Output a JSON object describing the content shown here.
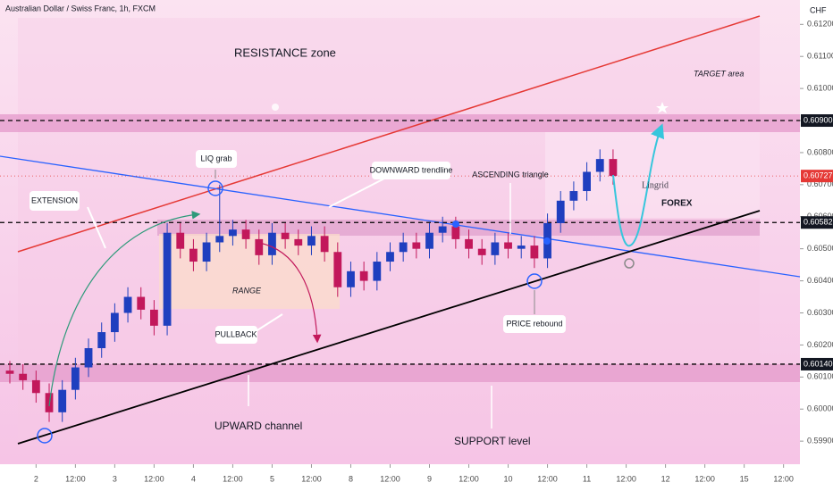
{
  "chart_data": {
    "type": "candlestick",
    "title": "Australian Dollar / Swiss Franc, 1h, FXCM",
    "currency": "CHF",
    "x": [
      -8,
      -4,
      0,
      4,
      8,
      12,
      16,
      20,
      24,
      28,
      32,
      36,
      40,
      44,
      48,
      52,
      56,
      60,
      64,
      68,
      72,
      76,
      80,
      84,
      88,
      92,
      96,
      100,
      104,
      108,
      112,
      116,
      120,
      124,
      128,
      132,
      136,
      140,
      144,
      148,
      152,
      156,
      160,
      164,
      168,
      172,
      176
    ],
    "open": [
      0.6012,
      0.6011,
      0.6009,
      0.6005,
      0.5999,
      0.6006,
      0.6013,
      0.6019,
      0.6024,
      0.603,
      0.6035,
      0.6031,
      0.6026,
      0.6055,
      0.605,
      0.6046,
      0.6052,
      0.6054,
      0.6056,
      0.6053,
      0.6048,
      0.6055,
      0.6053,
      0.6051,
      0.6054,
      0.6049,
      0.6038,
      0.6043,
      0.604,
      0.6046,
      0.6049,
      0.6052,
      0.605,
      0.6055,
      0.6057,
      0.6053,
      0.605,
      0.6048,
      0.6052,
      0.605,
      0.6051,
      0.6047,
      0.6058,
      0.6065,
      0.6068,
      0.6074,
      0.6078
    ],
    "high": [
      0.6015,
      0.6014,
      0.6012,
      0.6008,
      0.6009,
      0.6016,
      0.6022,
      0.6027,
      0.6033,
      0.6038,
      0.6038,
      0.6034,
      0.6058,
      0.6058,
      0.6053,
      0.6055,
      0.607,
      0.6059,
      0.6059,
      0.6056,
      0.6058,
      0.6058,
      0.6056,
      0.6057,
      0.6057,
      0.6052,
      0.6046,
      0.6046,
      0.6049,
      0.6052,
      0.6055,
      0.6055,
      0.6058,
      0.606,
      0.606,
      0.6056,
      0.6053,
      0.6055,
      0.6055,
      0.6054,
      0.6054,
      0.6061,
      0.6068,
      0.6071,
      0.6077,
      0.6081,
      0.6081
    ],
    "low": [
      0.6008,
      0.6006,
      0.6002,
      0.5996,
      0.5996,
      0.6003,
      0.601,
      0.6016,
      0.6021,
      0.6027,
      0.6028,
      0.6023,
      0.6023,
      0.6047,
      0.6043,
      0.6043,
      0.6049,
      0.6051,
      0.605,
      0.6045,
      0.6045,
      0.605,
      0.6048,
      0.6048,
      0.6046,
      0.6035,
      0.6035,
      0.6037,
      0.6037,
      0.6043,
      0.6046,
      0.6047,
      0.6047,
      0.6052,
      0.605,
      0.6047,
      0.6045,
      0.6045,
      0.6047,
      0.6047,
      0.6044,
      0.6044,
      0.6055,
      0.6062,
      0.6065,
      0.6071,
      0.607
    ],
    "close": [
      0.6011,
      0.6009,
      0.6005,
      0.5999,
      0.6006,
      0.6013,
      0.6019,
      0.6024,
      0.603,
      0.6035,
      0.6031,
      0.6026,
      0.6055,
      0.605,
      0.6046,
      0.6052,
      0.6054,
      0.6056,
      0.6053,
      0.6048,
      0.6055,
      0.6053,
      0.6051,
      0.6054,
      0.6049,
      0.6038,
      0.6043,
      0.604,
      0.6046,
      0.6049,
      0.6052,
      0.605,
      0.6055,
      0.6057,
      0.6053,
      0.605,
      0.6048,
      0.6052,
      0.605,
      0.6051,
      0.6047,
      0.6058,
      0.6065,
      0.6068,
      0.6074,
      0.6078,
      0.60727
    ],
    "up_color": "#1f3fbf",
    "down_color": "#c2185b",
    "xlim": [
      -11,
      233
    ],
    "ylim": [
      0.59828,
      0.61276
    ],
    "xticks": [
      {
        "value": 0,
        "label": "2"
      },
      {
        "value": 12,
        "label": "12:00"
      },
      {
        "value": 24,
        "label": "3"
      },
      {
        "value": 36,
        "label": "12:00"
      },
      {
        "value": 48,
        "label": "4"
      },
      {
        "value": 60,
        "label": "12:00"
      },
      {
        "value": 72,
        "label": "5"
      },
      {
        "value": 84,
        "label": "12:00"
      },
      {
        "value": 96,
        "label": "8"
      },
      {
        "value": 108,
        "label": "12:00"
      },
      {
        "value": 120,
        "label": "9"
      },
      {
        "value": 132,
        "label": "12:00"
      },
      {
        "value": 144,
        "label": "10"
      },
      {
        "value": 156,
        "label": "12:00"
      },
      {
        "value": 168,
        "label": "11"
      },
      {
        "value": 180,
        "label": "12:00"
      },
      {
        "value": 192,
        "label": "12"
      },
      {
        "value": 204,
        "label": "12:00"
      },
      {
        "value": 216,
        "label": "15"
      },
      {
        "value": 228,
        "label": "12:00"
      }
    ],
    "yticks": [
      {
        "value": 0.612,
        "label": "0.61200"
      },
      {
        "value": 0.611,
        "label": "0.61100"
      },
      {
        "value": 0.61,
        "label": "0.61000"
      },
      {
        "value": 0.609,
        "label": "0.60900"
      },
      {
        "value": 0.608,
        "label": "0.60800"
      },
      {
        "value": 0.607,
        "label": "0.60700"
      },
      {
        "value": 0.606,
        "label": "0.60600"
      },
      {
        "value": 0.605,
        "label": "0.60500"
      },
      {
        "value": 0.604,
        "label": "0.60400"
      },
      {
        "value": 0.603,
        "label": "0.60300"
      },
      {
        "value": 0.602,
        "label": "0.60200"
      },
      {
        "value": 0.601,
        "label": "0.60100"
      },
      {
        "value": 0.6,
        "label": "0.60000"
      },
      {
        "value": 0.599,
        "label": "0.59900"
      }
    ],
    "grid": false,
    "price_levels": [
      {
        "value": 0.609,
        "label": "0.60900"
      },
      {
        "value": 0.60582,
        "label": "0.60582"
      },
      {
        "value": 0.6014,
        "label": "0.60140"
      }
    ],
    "current_price": {
      "value": 0.60727,
      "label": "0.60727"
    },
    "annotations": {
      "resistance": "RESISTANCE zone",
      "target": "TARGET area",
      "liq": "LIQ grab",
      "downward": "DOWNWARD trendline",
      "ascending": "ASCENDING triangle",
      "extension": "EXTENSION",
      "range": "RANGE",
      "pullback": "PULLBACK",
      "rebound": "PRICE rebound",
      "upward": "UPWARD channel",
      "support": "SUPPORT level"
    },
    "logo": {
      "name": "Lingrid",
      "sub": "FOREX"
    }
  }
}
